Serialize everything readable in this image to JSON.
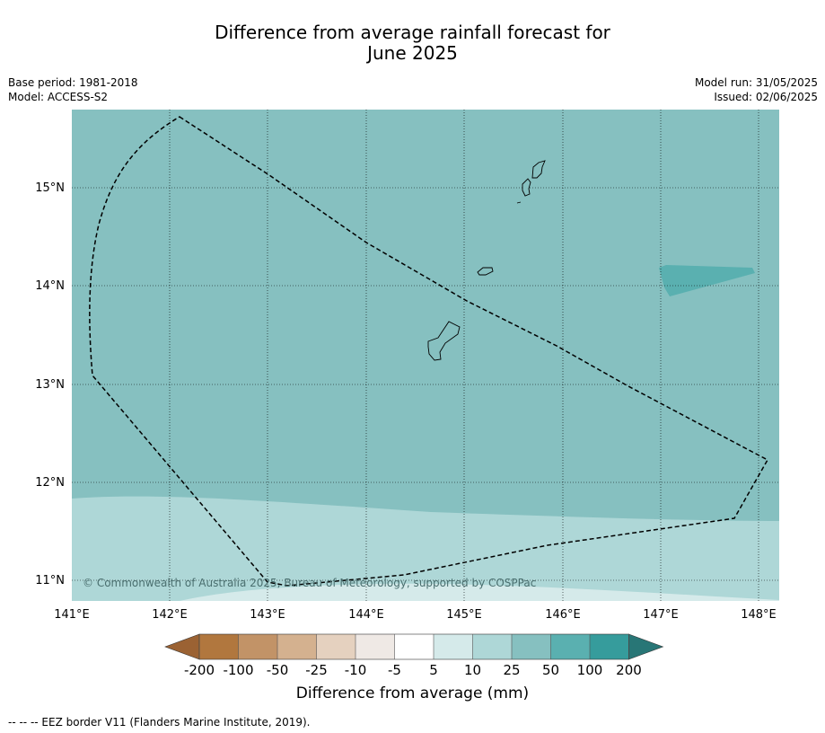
{
  "title_line1": "Difference from average rainfall forecast for",
  "title_line2": "June 2025",
  "meta_left": {
    "base_period": "Base period: 1981-2018",
    "model": "Model: ACCESS-S2"
  },
  "meta_right": {
    "model_run": "Model run: 31/05/2025",
    "issued": "Issued: 02/06/2025"
  },
  "map": {
    "lon_labels": [
      "141°E",
      "142°E",
      "143°E",
      "144°E",
      "145°E",
      "146°E",
      "147°E",
      "148°E"
    ],
    "lat_labels": [
      "15°N",
      "14°N",
      "13°N",
      "12°N",
      "11°N"
    ],
    "copyright": "© Commonwealth of Australia 2025, Bureau of Meteorology, supported by COSPPac",
    "fill_colors": {
      "band_25_50": "#86c0c0",
      "band_10_25": "#aed7d7",
      "band_5_10": "#d5eaea",
      "band_50_100": "#5ab0b0"
    }
  },
  "colorbar": {
    "ticks": [
      "-200",
      "-100",
      "-50",
      "-25",
      "-10",
      "-5",
      "5",
      "10",
      "25",
      "50",
      "100",
      "200"
    ],
    "colors": [
      "#9b6233",
      "#b1773e",
      "#c29367",
      "#d4b18f",
      "#e5d1bf",
      "#efe9e5",
      "#ffffff",
      "#d5eaea",
      "#aed7d7",
      "#86c0c0",
      "#5ab0b0",
      "#369c9c",
      "#287676"
    ],
    "title": "Difference from average (mm)"
  },
  "footnote": "--  --  -- EEZ border V11 (Flanders Marine Institute, 2019)."
}
